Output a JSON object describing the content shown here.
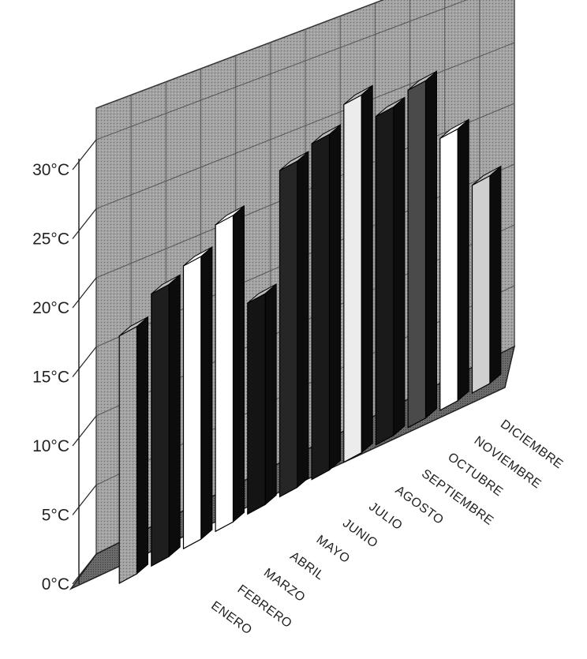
{
  "chart_data": {
    "type": "bar",
    "categories": [
      "ENERO",
      "FEBRERO",
      "MARZO",
      "ABRIL",
      "MAYO",
      "JUNIO",
      "JULIO",
      "AGOSTO",
      "SEPTIEMBRE",
      "OCTUBRE",
      "NOVIEMBRE",
      "DICIEMBRE"
    ],
    "values": [
      18,
      20,
      21,
      23,
      16,
      25,
      26,
      28,
      26,
      27,
      22,
      17
    ],
    "bar_colors": [
      "#8c8c8c",
      "#1e1e1e",
      "#ffffff",
      "#ffffff",
      "#141414",
      "#262626",
      "#1a1a1a",
      "#ececec",
      "#1a1a1a",
      "#4a4a4a",
      "#ffffff",
      "#cfcfcf"
    ],
    "y_ticks": [
      "0°C",
      "5°C",
      "10°C",
      "15°C",
      "20°C",
      "25°C",
      "30°C"
    ],
    "ylim": [
      0,
      30
    ],
    "grid": true,
    "title": "",
    "xlabel": "",
    "ylabel": ""
  },
  "colors": {
    "wall": "#9a9a9a",
    "floor": "#7a7a7a",
    "grid": "#555555"
  }
}
